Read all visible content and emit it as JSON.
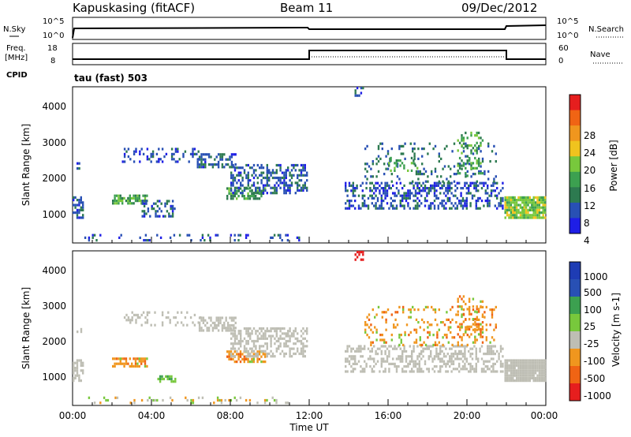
{
  "header": {
    "station": "Kapuskasing (fitACF)",
    "beam": "Beam 11",
    "date": "09/Dec/2012"
  },
  "top_panel": {
    "left_label": "N.Sky",
    "left_ticks": [
      "10^5",
      "10^0"
    ],
    "right_label": "N.Search",
    "right_ticks": [
      "10^5",
      "10^0"
    ]
  },
  "freq_panel": {
    "left_label_1": "Freq.",
    "left_label_2": "[MHz]",
    "left_ticks": [
      "18",
      "8"
    ],
    "right_label": "Nave",
    "right_ticks": [
      "60",
      "0"
    ],
    "cpid_label": "CPID",
    "mode_label": "tau (fast) 503"
  },
  "colors": {
    "power": [
      "#1e1ee6",
      "#2850b4",
      "#2d7a50",
      "#3ca050",
      "#78c83c",
      "#f0c31e",
      "#f0961e",
      "#f06414",
      "#e61e1e"
    ],
    "velocity": [
      "#e61e1e",
      "#f06414",
      "#f0961e",
      "#bebeb4",
      "#78c83c",
      "#3ca050",
      "#2850b4",
      "#1e3cb4"
    ],
    "gray": "#bebeb4"
  },
  "chart_data": [
    {
      "type": "heatmap",
      "name": "power",
      "ylabel": "Slant Range [km]",
      "y_ticks": [
        "4000",
        "3000",
        "2000",
        "1000"
      ],
      "ylim": [
        200,
        4550
      ],
      "colorbar_label": "Power [dB]",
      "colorbar_ticks": [
        "28",
        "24",
        "20",
        "16",
        "12",
        "8",
        "4"
      ],
      "colorbar_range": [
        0,
        32
      ],
      "scatter_bands": [
        {
          "t0": 0.0,
          "t1": 0.5,
          "r0": 900,
          "r1": 1500,
          "level": 6,
          "density": 0.6
        },
        {
          "t0": 0.2,
          "t1": 0.4,
          "r0": 2250,
          "r1": 2450,
          "level": 6,
          "density": 0.3
        },
        {
          "t0": 2.0,
          "t1": 3.8,
          "r0": 1300,
          "r1": 1550,
          "level": 14,
          "density": 0.7
        },
        {
          "t0": 3.5,
          "t1": 5.2,
          "r0": 950,
          "r1": 1400,
          "level": 7,
          "density": 0.5
        },
        {
          "t0": 0.5,
          "t1": 11.5,
          "r0": 250,
          "r1": 450,
          "level": 6,
          "density": 0.15
        },
        {
          "t0": 2.5,
          "t1": 6.5,
          "r0": 2450,
          "r1": 2850,
          "level": 6,
          "density": 0.25
        },
        {
          "t0": 6.3,
          "t1": 8.3,
          "r0": 2300,
          "r1": 2700,
          "level": 7,
          "density": 0.55
        },
        {
          "t0": 7.8,
          "t1": 9.8,
          "r0": 1450,
          "r1": 1750,
          "level": 13,
          "density": 0.6
        },
        {
          "t0": 8.0,
          "t1": 11.9,
          "r0": 1600,
          "r1": 2400,
          "level": 7,
          "density": 0.5
        },
        {
          "t0": 13.8,
          "t1": 21.8,
          "r0": 1150,
          "r1": 1900,
          "level": 6,
          "density": 0.45
        },
        {
          "t0": 14.8,
          "t1": 21.5,
          "r0": 1900,
          "r1": 3000,
          "level": 8,
          "density": 0.15
        },
        {
          "t0": 16.0,
          "t1": 17.5,
          "r0": 2200,
          "r1": 2600,
          "level": 14,
          "density": 0.3
        },
        {
          "t0": 19.5,
          "t1": 20.8,
          "r0": 2100,
          "r1": 3300,
          "level": 14,
          "density": 0.3
        },
        {
          "t0": 14.3,
          "t1": 14.7,
          "r0": 4300,
          "r1": 4550,
          "level": 6,
          "density": 0.4
        },
        {
          "t0": 21.9,
          "t1": 24.0,
          "r0": 900,
          "r1": 1500,
          "level": 18,
          "density": 0.9
        }
      ]
    },
    {
      "type": "heatmap",
      "name": "velocity",
      "ylabel": "Slant Range [km]",
      "y_ticks": [
        "4000",
        "3000",
        "2000",
        "1000"
      ],
      "ylim": [
        200,
        4550
      ],
      "colorbar_label": "Velocity [m s-1]",
      "colorbar_ticks": [
        "1000",
        "500",
        "100",
        "25",
        "-25",
        "-100",
        "-500",
        "-1000"
      ],
      "scatter_bands": [
        {
          "t0": 0.0,
          "t1": 0.5,
          "r0": 900,
          "r1": 1500,
          "level": "gray",
          "density": 0.6
        },
        {
          "t0": 0.2,
          "t1": 0.4,
          "r0": 2250,
          "r1": 2450,
          "level": "gray",
          "density": 0.3
        },
        {
          "t0": 2.0,
          "t1": 3.8,
          "r0": 1300,
          "r1": 1550,
          "level": "orange",
          "density": 0.7
        },
        {
          "t0": 4.3,
          "t1": 5.2,
          "r0": 850,
          "r1": 1050,
          "level": "green",
          "density": 0.5
        },
        {
          "t0": 0.5,
          "t1": 11.5,
          "r0": 250,
          "r1": 450,
          "level": "mixed",
          "density": 0.15
        },
        {
          "t0": 2.5,
          "t1": 6.5,
          "r0": 2450,
          "r1": 2850,
          "level": "gray",
          "density": 0.25
        },
        {
          "t0": 6.3,
          "t1": 8.3,
          "r0": 2300,
          "r1": 2700,
          "level": "gray",
          "density": 0.55
        },
        {
          "t0": 7.8,
          "t1": 9.8,
          "r0": 1450,
          "r1": 1750,
          "level": "orange",
          "density": 0.6
        },
        {
          "t0": 8.0,
          "t1": 11.9,
          "r0": 1600,
          "r1": 2400,
          "level": "gray",
          "density": 0.5
        },
        {
          "t0": 13.8,
          "t1": 21.8,
          "r0": 1150,
          "r1": 1900,
          "level": "gray",
          "density": 0.45
        },
        {
          "t0": 14.8,
          "t1": 21.5,
          "r0": 1900,
          "r1": 3000,
          "level": "orange",
          "density": 0.2
        },
        {
          "t0": 19.5,
          "t1": 20.8,
          "r0": 2100,
          "r1": 3300,
          "level": "orange",
          "density": 0.3
        },
        {
          "t0": 14.3,
          "t1": 14.7,
          "r0": 4300,
          "r1": 4550,
          "level": "red",
          "density": 0.4
        },
        {
          "t0": 21.9,
          "t1": 24.0,
          "r0": 900,
          "r1": 1500,
          "level": "gray",
          "density": 0.95
        }
      ]
    }
  ],
  "x_axis": {
    "label": "Time UT",
    "ticks": [
      "00:00",
      "04:00",
      "08:00",
      "12:00",
      "16:00",
      "20:00",
      "00:00"
    ],
    "range_hours": [
      0,
      24
    ]
  }
}
